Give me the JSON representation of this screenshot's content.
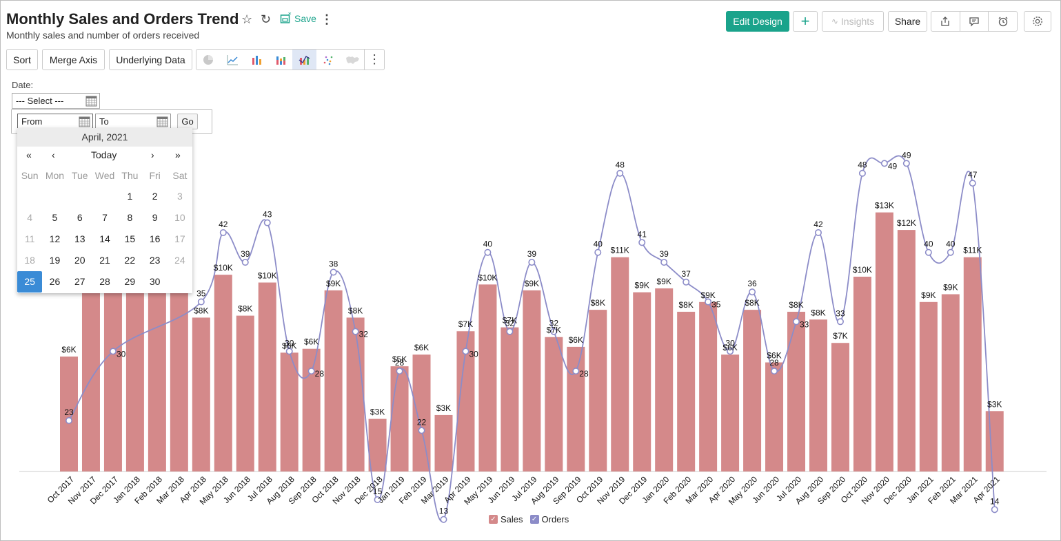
{
  "header": {
    "title": "Monthly Sales and Orders Trend",
    "subtitle": "Monthly sales and number of orders received",
    "save_label": "Save",
    "edit_design_label": "Edit Design",
    "insights_label": "Insights",
    "share_label": "Share",
    "icons": [
      "star-icon",
      "refresh-icon",
      "save-icon",
      "more-vertical-icon",
      "plus-icon",
      "insights-icon",
      "export-icon",
      "comment-icon",
      "alarm-icon",
      "settings-icon"
    ]
  },
  "toolbar": {
    "sort_label": "Sort",
    "merge_axis_label": "Merge Axis",
    "underlying_data_label": "Underlying Data",
    "chart_types": [
      "pie",
      "line",
      "bar",
      "stacked-bar",
      "bar-line-combo",
      "scatter",
      "map"
    ],
    "active_chart_type": "bar-line-combo"
  },
  "filter": {
    "label": "Date:",
    "select_value": "--- Select ---",
    "from_value": "From",
    "to_value": "To",
    "go_label": "Go"
  },
  "calendar": {
    "month_label": "April, 2021",
    "today_label": "Today",
    "nav": [
      "«",
      "‹",
      "›",
      "»"
    ],
    "weekdays": [
      "Sun",
      "Mon",
      "Tue",
      "Wed",
      "Thu",
      "Fri",
      "Sat"
    ],
    "selected_day": "25",
    "weeks": [
      [
        "",
        "",
        "",
        "",
        "1",
        "2",
        "3"
      ],
      [
        "4",
        "5",
        "6",
        "7",
        "8",
        "9",
        "10"
      ],
      [
        "11",
        "12",
        "13",
        "14",
        "15",
        "16",
        "17"
      ],
      [
        "18",
        "19",
        "20",
        "21",
        "22",
        "23",
        "24"
      ],
      [
        "25",
        "26",
        "27",
        "28",
        "29",
        "30",
        ""
      ]
    ]
  },
  "colors": {
    "sales_bar": "#d4898a",
    "orders_line": "#8c8cc8",
    "accent": "#1aa38b",
    "calendar_selected": "#3a8bd6"
  },
  "chart_data": {
    "type": "bar",
    "combo_line": true,
    "categories": [
      "Oct 2017",
      "Nov 2017",
      "Dec 2017",
      "Jan 2018",
      "Feb 2018",
      "Mar 2018",
      "Apr 2018",
      "May 2018",
      "Jun 2018",
      "Jul 2018",
      "Aug 2018",
      "Sep 2018",
      "Oct 2018",
      "Nov 2018",
      "Dec 2018",
      "Jan 2019",
      "Feb 2019",
      "Mar 2019",
      "Apr 2019",
      "May 2019",
      "Jun 2019",
      "Jul 2019",
      "Aug 2019",
      "Sep 2019",
      "Oct 2019",
      "Nov 2019",
      "Dec 2019",
      "Jan 2020",
      "Feb 2020",
      "Mar 2020",
      "Apr 2020",
      "May 2020",
      "Jun 2020",
      "Jul 2020",
      "Aug 2020",
      "Sep 2020",
      "Oct 2020",
      "Nov 2020",
      "Dec 2020",
      "Jan 2021",
      "Feb 2021",
      "Mar 2021",
      "Apr 2021"
    ],
    "series": [
      {
        "name": "Sales",
        "kind": "bar",
        "values": [
          5.9,
          null,
          null,
          null,
          null,
          null,
          7.9,
          10.1,
          8.0,
          9.7,
          6.1,
          6.3,
          9.3,
          7.9,
          2.7,
          5.4,
          6.0,
          2.9,
          7.2,
          9.6,
          7.4,
          9.3,
          6.9,
          6.4,
          8.3,
          11.0,
          9.2,
          9.4,
          8.2,
          8.7,
          6.0,
          8.3,
          5.6,
          8.2,
          7.8,
          6.6,
          10.0,
          13.3,
          12.4,
          8.7,
          9.1,
          11.0,
          3.1
        ],
        "labels": [
          "$6K",
          "",
          "",
          "",
          "",
          "",
          "$8K",
          "$10K",
          "$8K",
          "$10K",
          "$6K",
          "$6K",
          "$9K",
          "$8K",
          "$3K",
          "$5K",
          "$6K",
          "$3K",
          "$7K",
          "$10K",
          "$7K",
          "$9K",
          "$7K",
          "$6K",
          "$8K",
          "$11K",
          "$9K",
          "$9K",
          "$8K",
          "$9K",
          "$6K",
          "$8K",
          "$6K",
          "$8K",
          "$8K",
          "$7K",
          "$10K",
          "$13K",
          "$12K",
          "$9K",
          "$9K",
          "$11K",
          "$3K"
        ]
      },
      {
        "name": "Orders",
        "kind": "line",
        "values": [
          23,
          null,
          30,
          null,
          null,
          null,
          35,
          42,
          39,
          43,
          30,
          28,
          38,
          32,
          15,
          28,
          22,
          13,
          30,
          40,
          32,
          39,
          32,
          28,
          40,
          48,
          41,
          39,
          37,
          35,
          30,
          36,
          28,
          33,
          42,
          33,
          48,
          49,
          49,
          40,
          40,
          47,
          14
        ],
        "labels": [
          "23",
          "",
          "30",
          "",
          "",
          "",
          "35",
          "42",
          "39",
          "43",
          "30",
          "28",
          "38",
          "32",
          "15",
          "28",
          "22",
          "13",
          "30",
          "40",
          "32",
          "39",
          "32",
          "28",
          "40",
          "48",
          "41",
          "39",
          "37",
          "35",
          "30",
          "36",
          "28",
          "33",
          "42",
          "33",
          "48",
          "49",
          "49",
          "40",
          "40",
          "47",
          "14"
        ]
      }
    ],
    "legend": [
      "Sales",
      "Orders"
    ],
    "legend_placement": "bottom-center",
    "grid": false
  }
}
